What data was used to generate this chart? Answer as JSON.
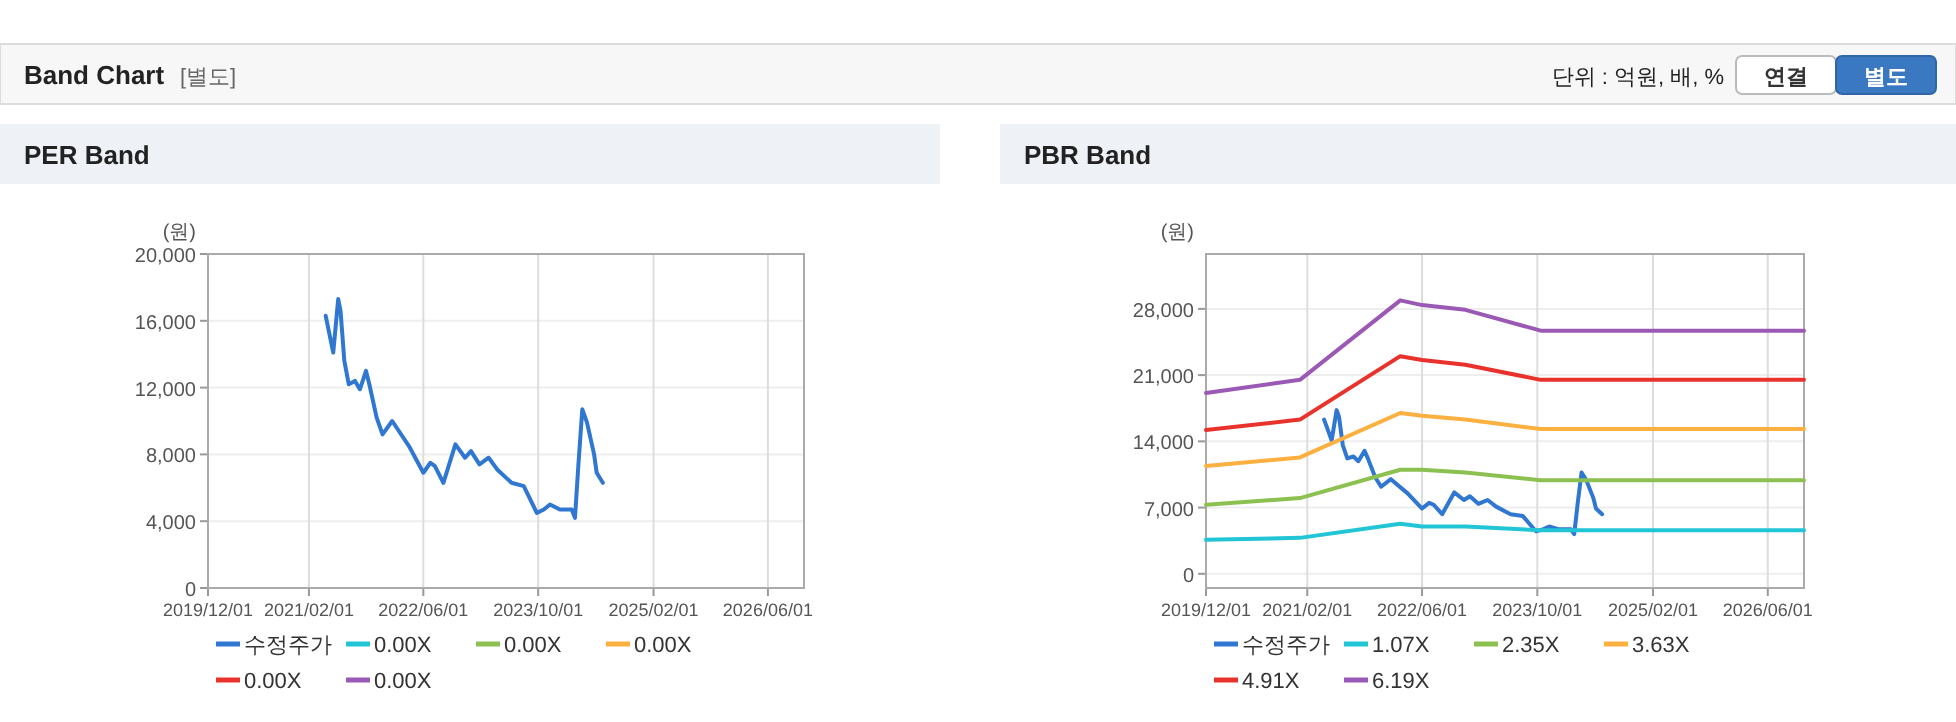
{
  "chart_data": [
    {
      "type": "other",
      "title": "Band Chart",
      "annotations": [
        "[별도]",
        "단위 : 억원, 배, %",
        "연결",
        "별도"
      ]
    },
    {
      "type": "line",
      "title": "PER Band",
      "ylabel": "(원)",
      "xlim": [
        "2019-12-01",
        "2026-11-01"
      ],
      "xticks": [
        {
          "value": "2019-12-01",
          "label": "2019/12/01"
        },
        {
          "value": "2021-02-01",
          "label": "2021/02/01"
        },
        {
          "value": "2022-06-01",
          "label": "2022/06/01"
        },
        {
          "value": "2023-10-01",
          "label": "2023/10/01"
        },
        {
          "value": "2025-02-01",
          "label": "2025/02/01"
        },
        {
          "value": "2026-06-01",
          "label": "2026/06/01"
        }
      ],
      "ylim": [
        0,
        20000
      ],
      "yticks": [
        0,
        {
          "value": 4000,
          "label": "4,000"
        },
        {
          "value": 8000,
          "label": "8,000"
        },
        {
          "value": 12000,
          "label": "12,000"
        },
        {
          "value": 16000,
          "label": "16,000"
        },
        {
          "value": 20000,
          "label": "20,000"
        }
      ],
      "grid": true,
      "legend": "bottom",
      "series": [
        {
          "name": "수정주가",
          "color": "#2f77d0",
          "x": [
            "2021-04-13",
            "2021-05-15",
            "2021-06-05",
            "2021-06-15",
            "2021-07-01",
            "2021-07-20",
            "2021-08-15",
            "2021-09-05",
            "2021-10-01",
            "2021-10-15",
            "2021-11-15",
            "2021-12-10",
            "2022-01-20",
            "2022-04-01",
            "2022-06-01",
            "2022-07-01",
            "2022-07-20",
            "2022-08-25",
            "2022-10-15",
            "2022-11-25",
            "2022-12-20",
            "2023-01-25",
            "2023-03-05",
            "2023-04-10",
            "2023-06-10",
            "2023-08-01",
            "2023-09-25",
            "2023-10-25",
            "2023-11-20",
            "2024-01-01",
            "2024-02-20",
            "2024-03-05",
            "2024-03-20",
            "2024-04-05",
            "2024-04-25",
            "2024-05-25",
            "2024-06-05",
            "2024-07-01"
          ],
          "values": [
            16300,
            14100,
            17300,
            16600,
            13600,
            12200,
            12400,
            11900,
            13000,
            12200,
            10200,
            9200,
            10000,
            8500,
            6900,
            7500,
            7300,
            6300,
            8600,
            7800,
            8200,
            7400,
            7800,
            7100,
            6300,
            6100,
            4500,
            4700,
            5000,
            4700,
            4700,
            4200,
            7500,
            10700,
            9900,
            8000,
            6900,
            6300
          ]
        },
        {
          "name": "0.00X",
          "color": "#22c5d5"
        },
        {
          "name": "0.00X",
          "color": "#8cc152"
        },
        {
          "name": "0.00X",
          "color": "#fbb040"
        },
        {
          "name": "0.00X",
          "color": "#e8322b"
        },
        {
          "name": "0.00X",
          "color": "#9b59b6"
        }
      ]
    },
    {
      "type": "line",
      "title": "PBR Band",
      "ylabel": "(원)",
      "xlim": [
        "2019-12-01",
        "2026-11-01"
      ],
      "xticks": [
        {
          "value": "2019-12-01",
          "label": "2019/12/01"
        },
        {
          "value": "2021-02-01",
          "label": "2021/02/01"
        },
        {
          "value": "2022-06-01",
          "label": "2022/06/01"
        },
        {
          "value": "2023-10-01",
          "label": "2023/10/01"
        },
        {
          "value": "2025-02-01",
          "label": "2025/02/01"
        },
        {
          "value": "2026-06-01",
          "label": "2026/06/01"
        }
      ],
      "ylim": [
        -1500,
        33800
      ],
      "yticks": [
        0,
        {
          "value": 7000,
          "label": "7,000"
        },
        {
          "value": 14000,
          "label": "14,000"
        },
        {
          "value": 21000,
          "label": "21,000"
        },
        {
          "value": 28000,
          "label": "28,000"
        }
      ],
      "grid": true,
      "legend": "bottom",
      "series": [
        {
          "name": "수정주가",
          "color": "#2f77d0",
          "x": [
            "2021-04-13",
            "2021-05-15",
            "2021-06-05",
            "2021-06-15",
            "2021-07-01",
            "2021-07-20",
            "2021-08-15",
            "2021-09-05",
            "2021-10-01",
            "2021-10-15",
            "2021-11-15",
            "2021-12-10",
            "2022-01-20",
            "2022-04-01",
            "2022-06-01",
            "2022-07-01",
            "2022-07-20",
            "2022-08-25",
            "2022-10-15",
            "2022-11-25",
            "2022-12-20",
            "2023-01-25",
            "2023-03-05",
            "2023-04-10",
            "2023-06-10",
            "2023-08-01",
            "2023-09-25",
            "2023-10-25",
            "2023-11-20",
            "2024-01-01",
            "2024-02-20",
            "2024-03-05",
            "2024-03-20",
            "2024-04-05",
            "2024-04-25",
            "2024-05-25",
            "2024-06-05",
            "2024-07-01"
          ],
          "values": [
            16300,
            14100,
            17300,
            16600,
            13600,
            12200,
            12400,
            11900,
            13000,
            12200,
            10200,
            9200,
            10000,
            8500,
            6900,
            7500,
            7300,
            6300,
            8600,
            7800,
            8200,
            7400,
            7800,
            7100,
            6300,
            6100,
            4500,
            4700,
            5000,
            4700,
            4700,
            4200,
            7500,
            10700,
            9900,
            8000,
            6900,
            6300
          ]
        },
        {
          "name": "1.07X",
          "color": "#22c5d5",
          "x": [
            "2019-12-01",
            "2021-01-01",
            "2022-03-01",
            "2022-06-01",
            "2022-12-01",
            "2023-10-15",
            "2026-11-01"
          ],
          "values": [
            3600,
            3800,
            5300,
            5000,
            5000,
            4600,
            4600
          ]
        },
        {
          "name": "2.35X",
          "color": "#8cc152",
          "x": [
            "2019-12-01",
            "2021-01-01",
            "2022-03-01",
            "2022-06-01",
            "2022-12-01",
            "2023-10-15",
            "2026-11-01"
          ],
          "values": [
            7300,
            8000,
            11000,
            11000,
            10700,
            9900,
            9900
          ]
        },
        {
          "name": "3.63X",
          "color": "#fbb040",
          "x": [
            "2019-12-01",
            "2021-01-01",
            "2022-03-01",
            "2022-06-01",
            "2022-12-01",
            "2023-10-15",
            "2026-11-01"
          ],
          "values": [
            11400,
            12300,
            17000,
            16700,
            16300,
            15300,
            15300
          ]
        },
        {
          "name": "4.91X",
          "color": "#e8322b",
          "x": [
            "2019-12-01",
            "2021-01-01",
            "2022-03-01",
            "2022-06-01",
            "2022-12-01",
            "2023-10-15",
            "2026-11-01"
          ],
          "values": [
            15200,
            16300,
            23000,
            22600,
            22100,
            20500,
            20500
          ]
        },
        {
          "name": "6.19X",
          "color": "#9b59b6",
          "x": [
            "2019-12-01",
            "2021-01-01",
            "2022-03-01",
            "2022-06-01",
            "2022-12-01",
            "2023-10-15",
            "2026-11-01"
          ],
          "values": [
            19100,
            20500,
            28900,
            28400,
            27900,
            25700,
            25700
          ]
        }
      ]
    }
  ]
}
